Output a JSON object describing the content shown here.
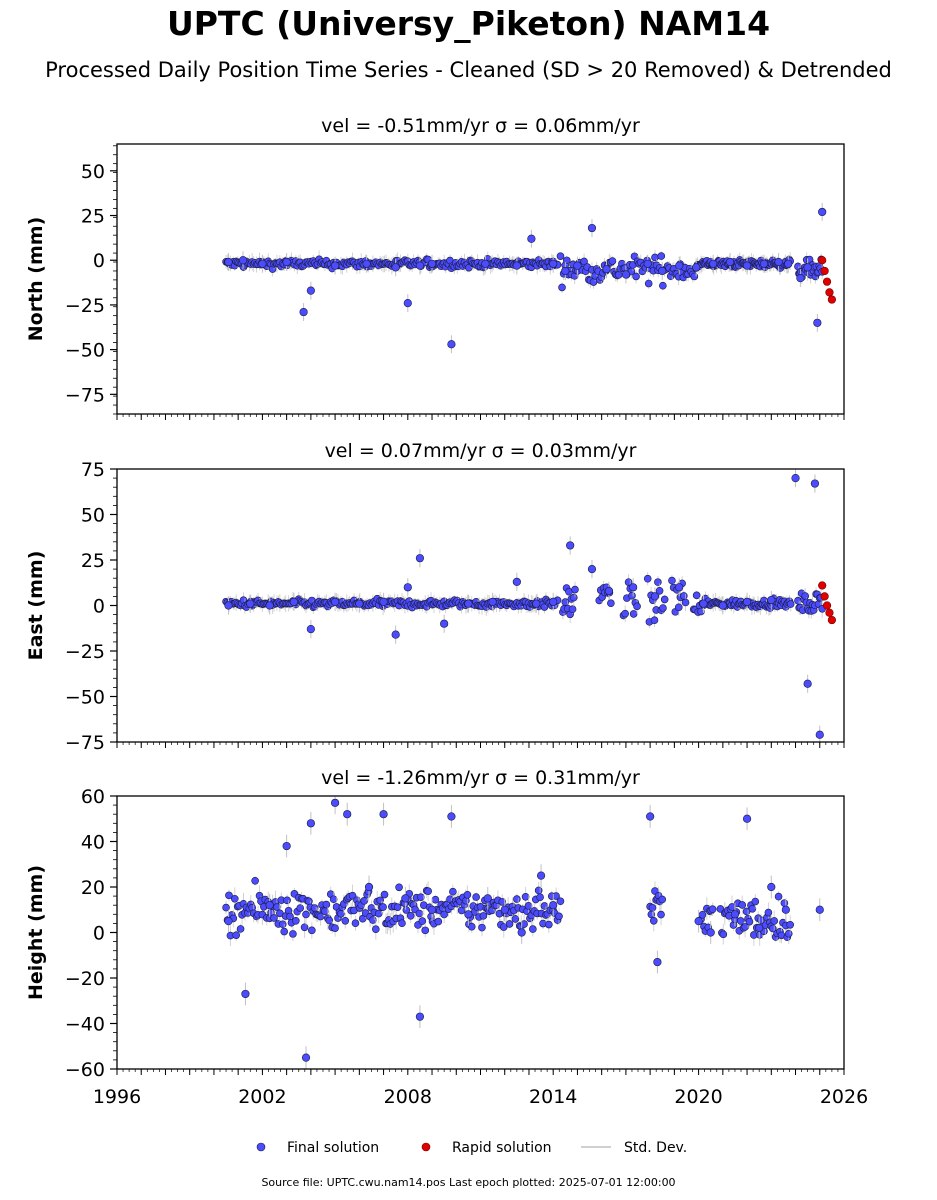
{
  "figure": {
    "title": "UPTC (Universy_Piketon) NAM14",
    "subtitle": "Processed Daily Position Time Series - Cleaned (SD > 20 Removed) & Detrended",
    "source": "Source file: UPTC.cwu.nam14.pos  Last epoch plotted: 2025-07-01 12:00:00"
  },
  "colors": {
    "final": "#4b4bff",
    "rapid": "#e00000",
    "stddev": "#c0c0c0",
    "edge": "#1a1a3a"
  },
  "chart_data": [
    {
      "type": "scatter",
      "title": "vel = -0.51mm/yr   σ = 0.06mm/yr",
      "ylabel": "North (mm)",
      "xlim": [
        1996,
        2026
      ],
      "ylim": [
        -86,
        65
      ],
      "yticks": [
        50,
        25,
        0,
        -25,
        -50,
        -75
      ],
      "ytick_labels": [
        "50",
        "25",
        "0",
        "−25",
        "−50",
        "−75"
      ],
      "series": [
        {
          "name": "Final solution",
          "x": [
            2000.6,
            2001.2,
            2002.0,
            2003.0,
            2003.7,
            2004.0,
            2005.0,
            2006.3,
            2007.5,
            2008.0,
            2008.5,
            2009.0,
            2009.8,
            2011.2,
            2012.5,
            2013.1,
            2014.0,
            2014.5,
            2015.0,
            2015.6,
            2016.2,
            2017.0,
            2017.9,
            2018.5,
            2019.2,
            2019.9,
            2020.6,
            2021.3,
            2022.0,
            2022.7,
            2023.3,
            2023.7,
            2024.2,
            2024.5,
            2024.9,
            2025.1
          ],
          "y": [
            -1,
            0,
            -2,
            -1,
            -29,
            -17,
            -3,
            -2,
            -4,
            -24,
            -3,
            -2,
            -47,
            -2,
            -3,
            12,
            -2,
            -6,
            -3,
            18,
            -5,
            -8,
            -2,
            -6,
            -3,
            -4,
            -2,
            -1,
            -3,
            -2,
            -1,
            -2,
            -10,
            -4,
            -35,
            27
          ]
        },
        {
          "name": "Rapid solution",
          "x": [
            2025.1,
            2025.2,
            2025.3,
            2025.4,
            2025.5
          ],
          "y": [
            0,
            -6,
            -12,
            -18,
            -22
          ]
        },
        {
          "name": "Std. Dev.",
          "x": [],
          "y": []
        }
      ]
    },
    {
      "type": "scatter",
      "title": "vel = 0.07mm/yr   σ = 0.03mm/yr",
      "ylabel": "East (mm)",
      "xlim": [
        1996,
        2026
      ],
      "ylim": [
        -75,
        75
      ],
      "yticks": [
        75,
        50,
        25,
        0,
        -25,
        -50,
        -75
      ],
      "ytick_labels": [
        "75",
        "50",
        "25",
        "0",
        "−25",
        "−50",
        "−75"
      ],
      "series": [
        {
          "name": "Final solution",
          "x": [
            2000.6,
            2001.5,
            2002.3,
            2003.3,
            2004.0,
            2005.0,
            2006.0,
            2007.0,
            2007.5,
            2008.0,
            2008.5,
            2009.5,
            2010.5,
            2011.5,
            2012.5,
            2013.3,
            2014.0,
            2014.7,
            2015.6,
            2016.3,
            2017.3,
            2018.2,
            2019.2,
            2020.2,
            2021.0,
            2022.0,
            2023.0,
            2024.0,
            2024.5,
            2024.8,
            2025.0
          ],
          "y": [
            0,
            1,
            0,
            2,
            -13,
            2,
            1,
            2,
            -16,
            10,
            26,
            -10,
            1,
            2,
            13,
            1,
            2,
            33,
            20,
            8,
            10,
            5,
            10,
            1,
            0,
            2,
            3,
            70,
            -43,
            67,
            -71
          ]
        },
        {
          "name": "Rapid solution",
          "x": [
            2025.1,
            2025.2,
            2025.3,
            2025.4,
            2025.5
          ],
          "y": [
            11,
            5,
            0,
            -4,
            -8
          ]
        },
        {
          "name": "Std. Dev.",
          "x": [],
          "y": []
        }
      ]
    },
    {
      "type": "scatter",
      "title": "vel = -1.26mm/yr   σ = 0.31mm/yr",
      "ylabel": "Height (mm)",
      "xlim": [
        1996,
        2026
      ],
      "ylim": [
        -60,
        60
      ],
      "yticks": [
        60,
        40,
        20,
        0,
        -20,
        -40,
        -60
      ],
      "ytick_labels": [
        "60",
        "40",
        "20",
        "0",
        "−20",
        "−40",
        "−60"
      ],
      "xticks": [
        1996,
        2002,
        2008,
        2014,
        2020,
        2026
      ],
      "xtick_labels": [
        "1996",
        "2002",
        "2008",
        "2014",
        "2020",
        "2026"
      ],
      "series": [
        {
          "name": "Final solution",
          "x": [
            2000.6,
            2001.3,
            2002.3,
            2003.0,
            2003.8,
            2004.0,
            2005.0,
            2005.5,
            2006.4,
            2007.0,
            2007.9,
            2008.5,
            2009.0,
            2009.8,
            2010.5,
            2011.3,
            2012.0,
            2012.7,
            2013.5,
            2014.0,
            2018.0,
            2018.3,
            2020.0,
            2020.5,
            2021.5,
            2022.0,
            2022.5,
            2023.0,
            2023.6,
            2025.0
          ],
          "y": [
            5,
            -27,
            12,
            38,
            -55,
            48,
            57,
            52,
            20,
            52,
            15,
            -37,
            10,
            51,
            8,
            15,
            10,
            0,
            25,
            12,
            51,
            -13,
            5,
            0,
            8,
            50,
            2,
            20,
            10,
            10
          ]
        },
        {
          "name": "Rapid solution",
          "x": [],
          "y": []
        },
        {
          "name": "Std. Dev.",
          "x": [],
          "y": []
        }
      ]
    }
  ],
  "legend": {
    "position": "bottom-center",
    "items": [
      {
        "label": "Final solution"
      },
      {
        "label": "Rapid solution"
      },
      {
        "label": "Std. Dev."
      }
    ]
  }
}
